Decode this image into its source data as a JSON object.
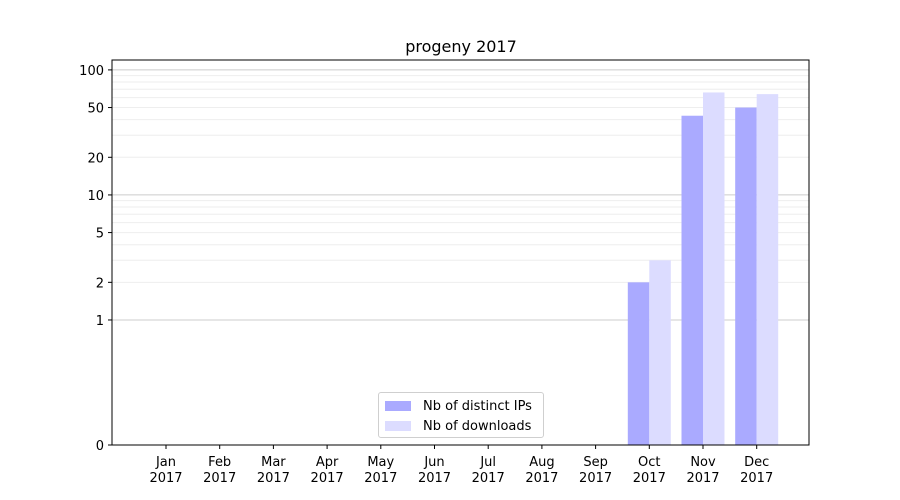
{
  "chart_data": {
    "type": "bar",
    "title": "progeny 2017",
    "xlabel": "",
    "ylabel": "",
    "yscale": "symlog",
    "ylim": [
      0,
      120
    ],
    "yticks": [
      0,
      1,
      2,
      5,
      10,
      20,
      50,
      100
    ],
    "categories": [
      "Jan\n2017",
      "Feb\n2017",
      "Mar\n2017",
      "Apr\n2017",
      "May\n2017",
      "Jun\n2017",
      "Jul\n2017",
      "Aug\n2017",
      "Sep\n2017",
      "Oct\n2017",
      "Nov\n2017",
      "Dec\n2017"
    ],
    "series": [
      {
        "name": "Nb of distinct IPs",
        "color": "#aaaaff",
        "values": [
          0,
          0,
          0,
          0,
          0,
          0,
          0,
          0,
          0,
          2,
          43,
          50
        ]
      },
      {
        "name": "Nb of downloads",
        "color": "#dcdcff",
        "values": [
          0,
          0,
          0,
          0,
          0,
          0,
          0,
          0,
          0,
          3,
          66,
          64
        ]
      }
    ],
    "legend_position": "lower-center",
    "grid": "y"
  }
}
